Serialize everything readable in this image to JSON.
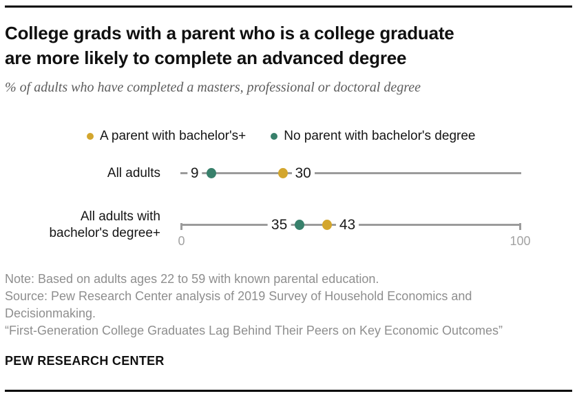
{
  "header": {
    "title_lines": [
      "College grads with a parent who is a college graduate",
      "are more likely to complete an advanced degree"
    ],
    "subtitle": "% of adults who have completed a masters, professional or doctoral degree"
  },
  "legend": [
    {
      "key": "parent_bachelors",
      "label": "A parent with bachelor's+",
      "color": "#d3a62e"
    },
    {
      "key": "no_parent",
      "label": "No parent with bachelor's degree",
      "color": "#38806b"
    }
  ],
  "chart_data": {
    "type": "scatter",
    "variant": "dot-plot",
    "title": "College grads with a parent who is a college graduate are more likely to complete an advanced degree",
    "subtitle": "% of adults who have completed a masters, professional or doctoral degree",
    "xlim": [
      0,
      100
    ],
    "x_ticks": [
      "0",
      "100"
    ],
    "grid": false,
    "legend_position": "top",
    "categories": [
      "All adults",
      "All adults with bachelor's degree+"
    ],
    "series": [
      {
        "key": "parent_bachelors",
        "name": "A parent with bachelor's+",
        "color": "#d3a62e",
        "values": [
          30,
          43
        ]
      },
      {
        "key": "no_parent",
        "name": "No parent with bachelor's degree",
        "color": "#38806b",
        "values": [
          9,
          35
        ]
      }
    ],
    "rows": [
      {
        "label_lines": [
          "All adults"
        ],
        "axis": false,
        "points": [
          {
            "series": 1,
            "value": 9,
            "side": "left"
          },
          {
            "series": 0,
            "value": 30,
            "side": "right"
          }
        ]
      },
      {
        "label_lines": [
          "All adults with",
          "bachelor's degree+"
        ],
        "axis": true,
        "points": [
          {
            "series": 1,
            "value": 35,
            "side": "left"
          },
          {
            "series": 0,
            "value": 43,
            "side": "right"
          }
        ]
      }
    ]
  },
  "notes": [
    "Note: Based on adults ages 22 to 59 with known parental education.",
    "Source: Pew Research Center analysis of 2019 Survey of Household Economics and Decisionmaking.",
    "“First-Generation College Graduates Lag Behind Their Peers on Key Economic Outcomes”"
  ],
  "footer_brand": "PEW RESEARCH CENTER",
  "colors": {
    "accent_gold": "#d3a62e",
    "accent_teal": "#38806b",
    "line_gray": "#9b9b9b",
    "axis_label_gray": "#a2a2a2",
    "note_gray": "#8e8e8e",
    "rule_black": "#000000"
  }
}
